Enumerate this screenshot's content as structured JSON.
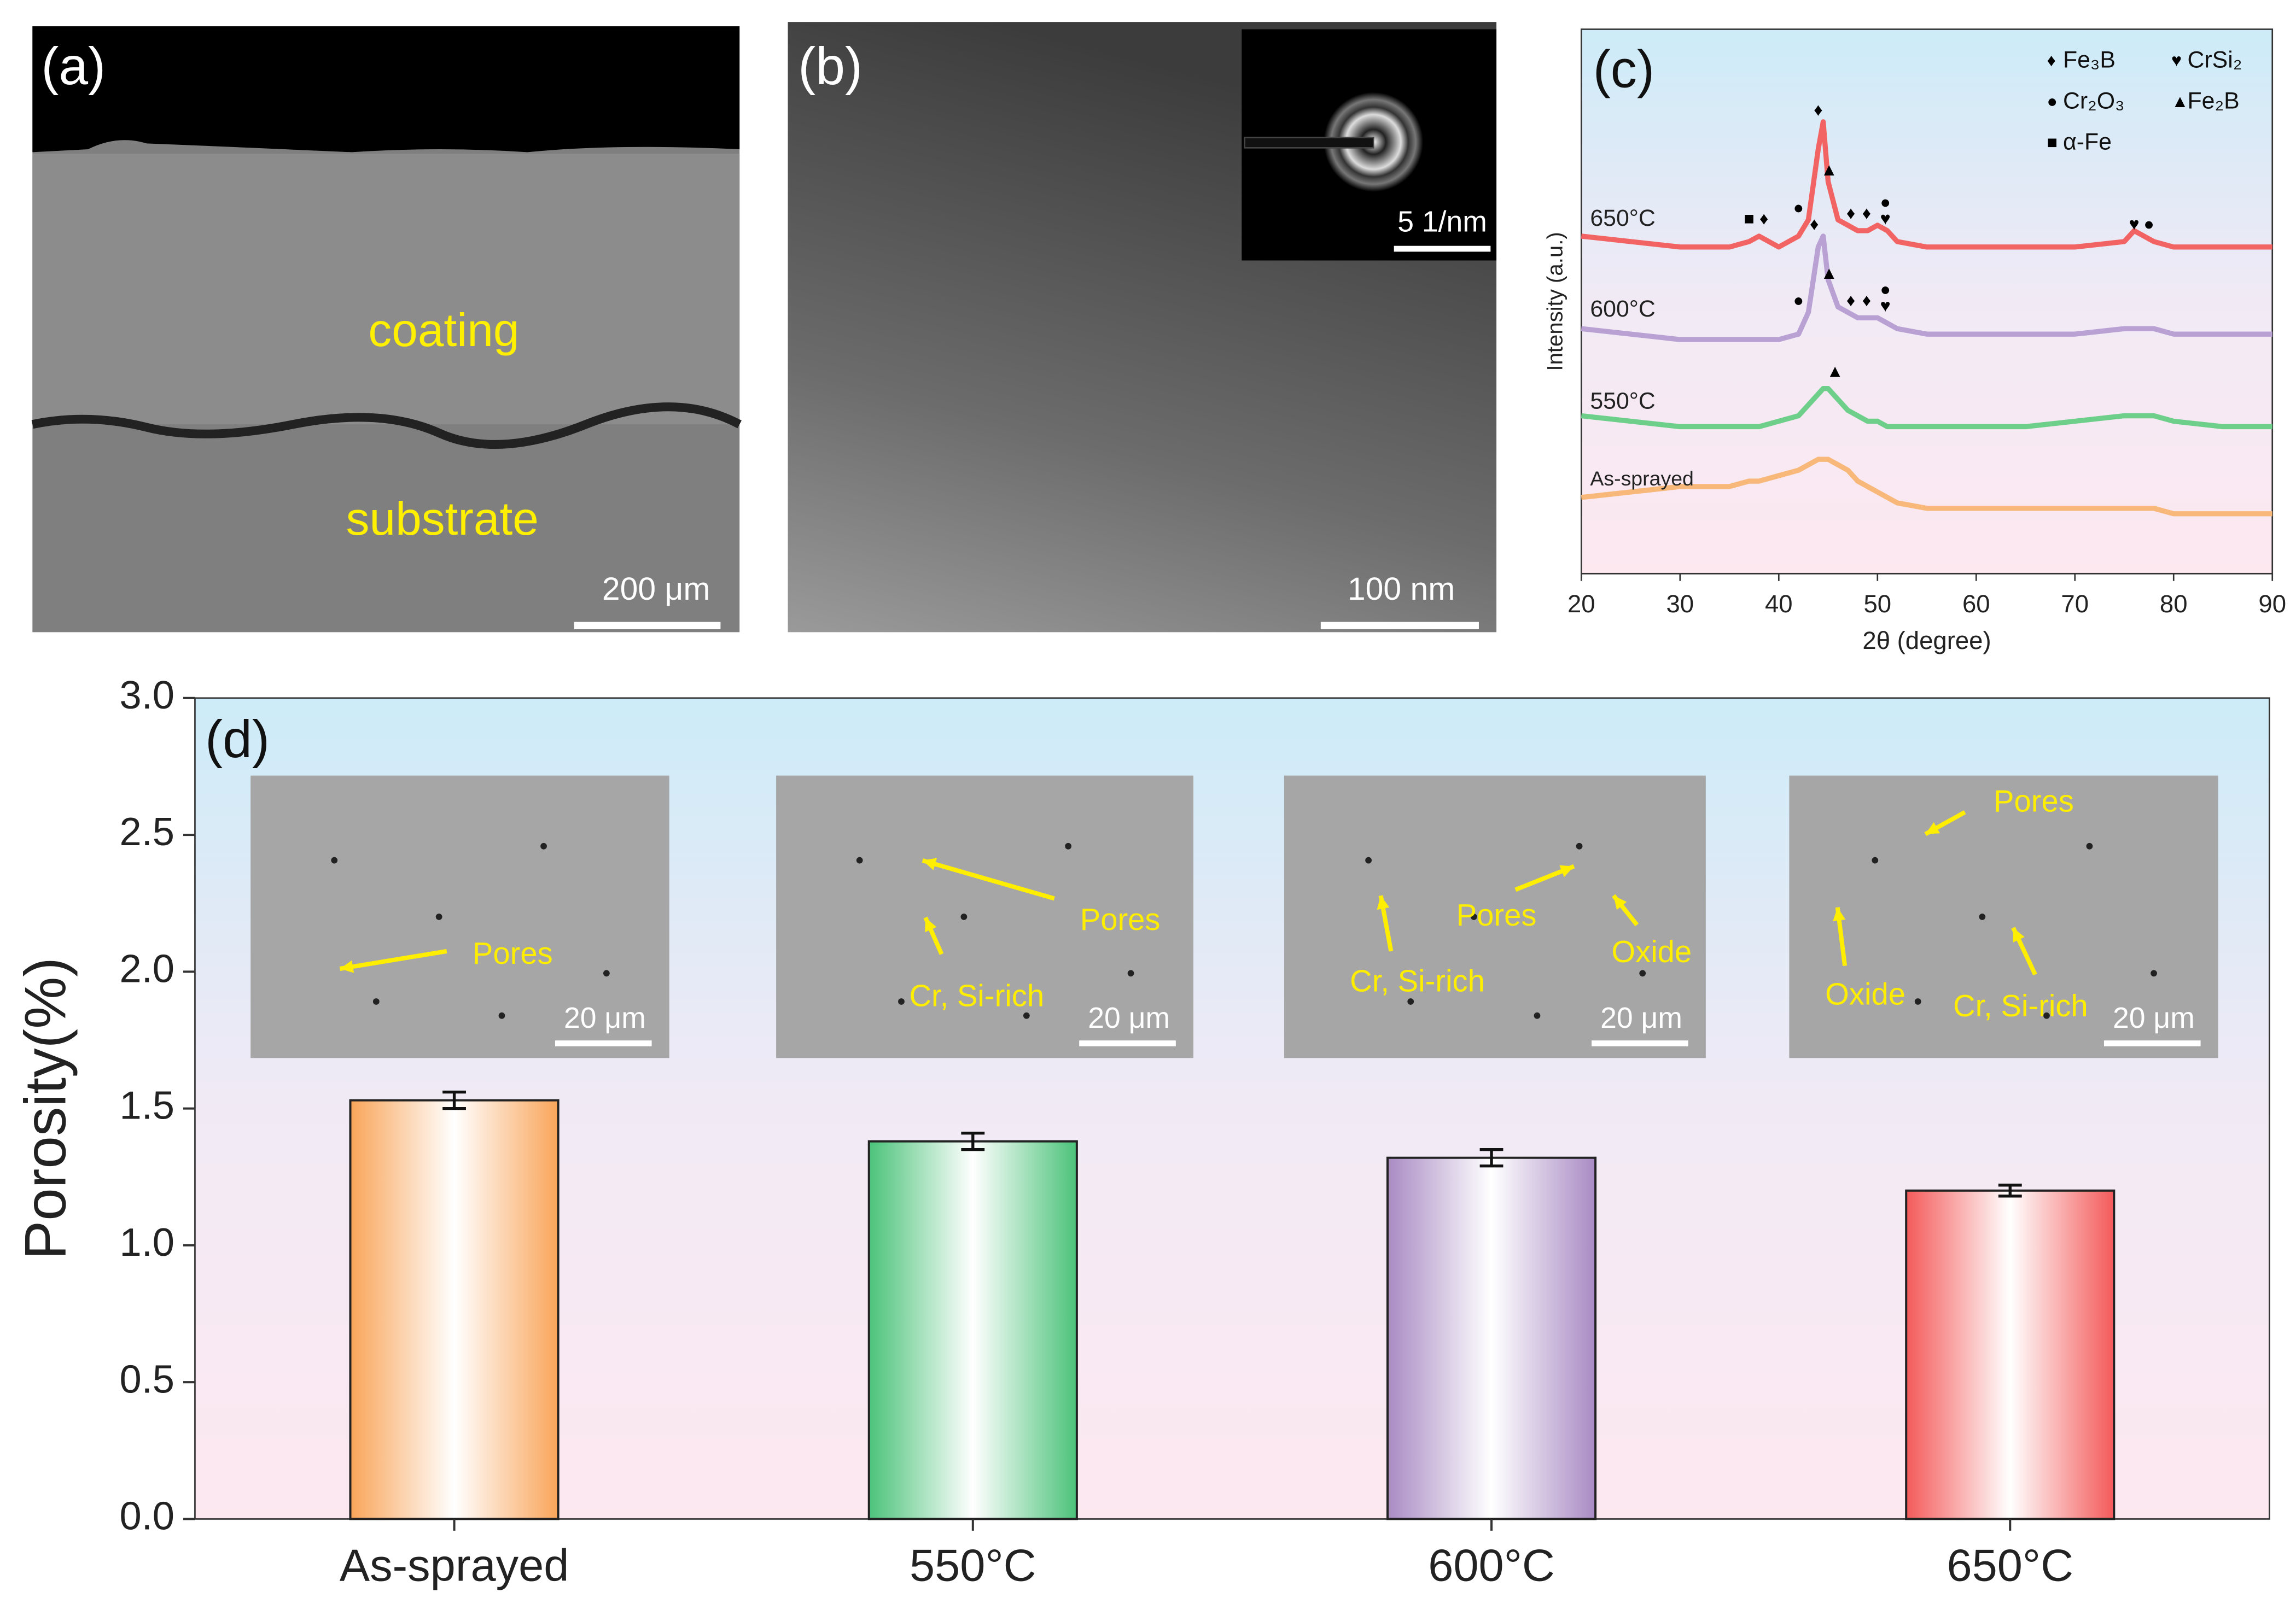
{
  "panels": [
    {
      "label": "(a)",
      "texts": [
        "coating",
        "substrate"
      ],
      "scale_bar": "200 μm"
    },
    {
      "label": "(b)",
      "inset_scale_bar": "5 1/nm",
      "scale_bar": "100 nm"
    }
  ],
  "chart_data": [
    {
      "type": "line",
      "label": "(c)",
      "xlabel": "2θ (degree)",
      "ylabel": "Intensity (a.u.)",
      "xlim": [
        20,
        90
      ],
      "xticks": [
        20,
        30,
        40,
        50,
        60,
        70,
        80,
        90
      ],
      "ylim": [
        0,
        100
      ],
      "x": [
        20,
        25,
        30,
        35,
        37,
        38,
        40,
        42,
        43,
        44,
        44.5,
        45,
        46,
        47,
        48,
        49,
        50,
        51,
        52,
        55,
        60,
        65,
        70,
        75,
        76,
        77,
        78,
        80,
        85,
        90
      ],
      "series": [
        {
          "name": "650°C",
          "color": "#f26464",
          "values": [
            62,
            61,
            60,
            60,
            61,
            62,
            60,
            62,
            65,
            78,
            83,
            72,
            65,
            64,
            63,
            63,
            64,
            63,
            61,
            60,
            60,
            60,
            60,
            61,
            63,
            62,
            61,
            60,
            60,
            60
          ]
        },
        {
          "name": "600°C",
          "color": "#b9a1d4",
          "values": [
            45,
            44,
            43,
            43,
            43,
            43,
            43,
            44,
            48,
            60,
            62,
            54,
            49,
            48,
            47,
            47,
            47,
            46,
            45,
            44,
            44,
            44,
            44,
            45,
            45,
            45,
            45,
            44,
            44,
            44
          ]
        },
        {
          "name": "550°C",
          "color": "#6dcf8a",
          "values": [
            29,
            28,
            27,
            27,
            27,
            27,
            28,
            29,
            31,
            33,
            34,
            34,
            32,
            30,
            29,
            28,
            28,
            27,
            27,
            27,
            27,
            27,
            28,
            29,
            29,
            29,
            29,
            28,
            27,
            27
          ]
        },
        {
          "name": "As-sprayed",
          "color": "#f7b87a",
          "values": [
            14,
            15,
            16,
            16,
            17,
            17,
            18,
            19,
            20,
            21,
            21,
            21,
            20,
            19,
            17,
            16,
            15,
            14,
            13,
            12,
            12,
            12,
            12,
            12,
            12,
            12,
            12,
            11,
            11,
            11
          ]
        }
      ],
      "legend": [
        {
          "symbol": "♦",
          "name": "Fe₃B"
        },
        {
          "symbol": "♥",
          "name": "CrSi₂"
        },
        {
          "symbol": "●",
          "name": "Cr₂O₃"
        },
        {
          "symbol": "▲",
          "name": "Fe₂B"
        },
        {
          "symbol": "■",
          "name": "α-Fe"
        }
      ],
      "markers": [
        {
          "symbol": "■",
          "x": 37,
          "y": 65
        },
        {
          "symbol": "♦",
          "x": 38.5,
          "y": 65
        },
        {
          "symbol": "●",
          "x": 42,
          "y": 67
        },
        {
          "symbol": "♦",
          "x": 44,
          "y": 85
        },
        {
          "symbol": "▲",
          "x": 45.1,
          "y": 74
        },
        {
          "symbol": "♦",
          "x": 47.3,
          "y": 66
        },
        {
          "symbol": "♦",
          "x": 48.9,
          "y": 66
        },
        {
          "symbol": "●",
          "x": 50.8,
          "y": 68
        },
        {
          "symbol": "♥",
          "x": 50.8,
          "y": 65
        },
        {
          "symbol": "♥",
          "x": 76,
          "y": 64
        },
        {
          "symbol": "●",
          "x": 77.5,
          "y": 64
        },
        {
          "symbol": "●",
          "x": 42,
          "y": 50
        },
        {
          "symbol": "♦",
          "x": 43.6,
          "y": 64
        },
        {
          "symbol": "▲",
          "x": 45.1,
          "y": 55
        },
        {
          "symbol": "♦",
          "x": 47.3,
          "y": 50
        },
        {
          "symbol": "♦",
          "x": 48.9,
          "y": 50
        },
        {
          "symbol": "●",
          "x": 50.8,
          "y": 52
        },
        {
          "symbol": "♥",
          "x": 50.8,
          "y": 49
        },
        {
          "symbol": "▲",
          "x": 45.7,
          "y": 37
        }
      ]
    },
    {
      "type": "bar",
      "label": "(d)",
      "ylabel": "Porosity(%)",
      "categories": [
        "As-sprayed",
        "550°C",
        "600°C",
        "650°C"
      ],
      "values": [
        1.53,
        1.38,
        1.32,
        1.2
      ],
      "errors": [
        0.03,
        0.03,
        0.03,
        0.02
      ],
      "colors": [
        "#f9a55a",
        "#4cc37a",
        "#a98bc4",
        "#f45a5a"
      ],
      "ylim": [
        0,
        3
      ],
      "yticks": [
        {
          "value": 0,
          "label": "0.0"
        },
        0.5,
        {
          "value": 1,
          "label": "1.0"
        },
        1.5,
        {
          "value": 2,
          "label": "2.0"
        },
        2.5,
        {
          "value": 3,
          "label": "3.0"
        }
      ],
      "insets": [
        {
          "labels": [
            "Pores"
          ],
          "scale_bar": "20 μm"
        },
        {
          "labels": [
            "Pores",
            "Cr, Si-rich"
          ],
          "scale_bar": "20 μm"
        },
        {
          "labels": [
            "Pores",
            "Oxide",
            "Cr, Si-rich"
          ],
          "scale_bar": "20 μm"
        },
        {
          "labels": [
            "Pores",
            "Oxide",
            "Cr, Si-rich"
          ],
          "scale_bar": "20 μm"
        }
      ]
    }
  ]
}
